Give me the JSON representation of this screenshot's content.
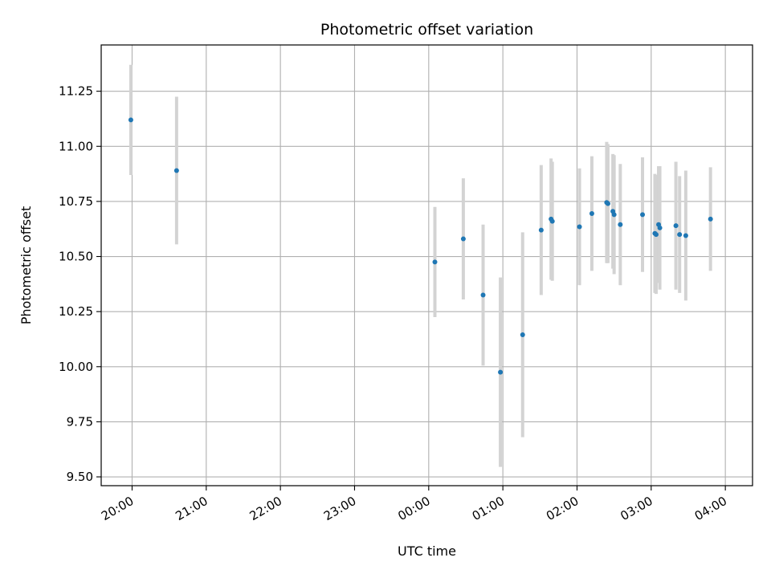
{
  "chart_data": {
    "type": "scatter",
    "title": "Photometric offset variation",
    "xlabel": "UTC time",
    "ylabel": "Photometric offset",
    "x_unit": "UTC time (hh:mm)",
    "xlim": [
      "19:35",
      "04:22"
    ],
    "ylim": [
      9.46,
      11.46
    ],
    "grid": true,
    "x_ticks": [
      "20:00",
      "21:00",
      "22:00",
      "23:00",
      "00:00",
      "01:00",
      "02:00",
      "03:00",
      "04:00"
    ],
    "y_ticks": [
      "9.50",
      "9.75",
      "10.00",
      "10.25",
      "10.50",
      "10.75",
      "11.00",
      "11.25"
    ],
    "point_color": "#1f77b4",
    "errorbar_color": "#d3d3d3",
    "points": [
      {
        "x": "19:59",
        "y": 11.12,
        "err": 0.25
      },
      {
        "x": "20:36",
        "y": 10.89,
        "err": 0.335
      },
      {
        "x": "00:05",
        "y": 10.475,
        "err": 0.25
      },
      {
        "x": "00:28",
        "y": 10.58,
        "err": 0.275
      },
      {
        "x": "00:44",
        "y": 10.325,
        "err": 0.32
      },
      {
        "x": "00:58",
        "y": 9.975,
        "err": 0.43
      },
      {
        "x": "01:16",
        "y": 10.145,
        "err": 0.465
      },
      {
        "x": "01:31",
        "y": 10.62,
        "err": 0.295
      },
      {
        "x": "01:39",
        "y": 10.67,
        "err": 0.275
      },
      {
        "x": "01:40",
        "y": 10.66,
        "err": 0.27
      },
      {
        "x": "02:02",
        "y": 10.635,
        "err": 0.265
      },
      {
        "x": "02:12",
        "y": 10.695,
        "err": 0.26
      },
      {
        "x": "02:24",
        "y": 10.745,
        "err": 0.275
      },
      {
        "x": "02:25",
        "y": 10.74,
        "err": 0.27
      },
      {
        "x": "02:29",
        "y": 10.705,
        "err": 0.26
      },
      {
        "x": "02:30",
        "y": 10.69,
        "err": 0.27
      },
      {
        "x": "02:35",
        "y": 10.645,
        "err": 0.275
      },
      {
        "x": "02:53",
        "y": 10.69,
        "err": 0.26
      },
      {
        "x": "03:03",
        "y": 10.605,
        "err": 0.27
      },
      {
        "x": "03:04",
        "y": 10.6,
        "err": 0.27
      },
      {
        "x": "03:06",
        "y": 10.645,
        "err": 0.265
      },
      {
        "x": "03:07",
        "y": 10.63,
        "err": 0.28
      },
      {
        "x": "03:20",
        "y": 10.64,
        "err": 0.29
      },
      {
        "x": "03:23",
        "y": 10.6,
        "err": 0.265
      },
      {
        "x": "03:28",
        "y": 10.595,
        "err": 0.295
      },
      {
        "x": "03:48",
        "y": 10.67,
        "err": 0.235
      }
    ]
  }
}
